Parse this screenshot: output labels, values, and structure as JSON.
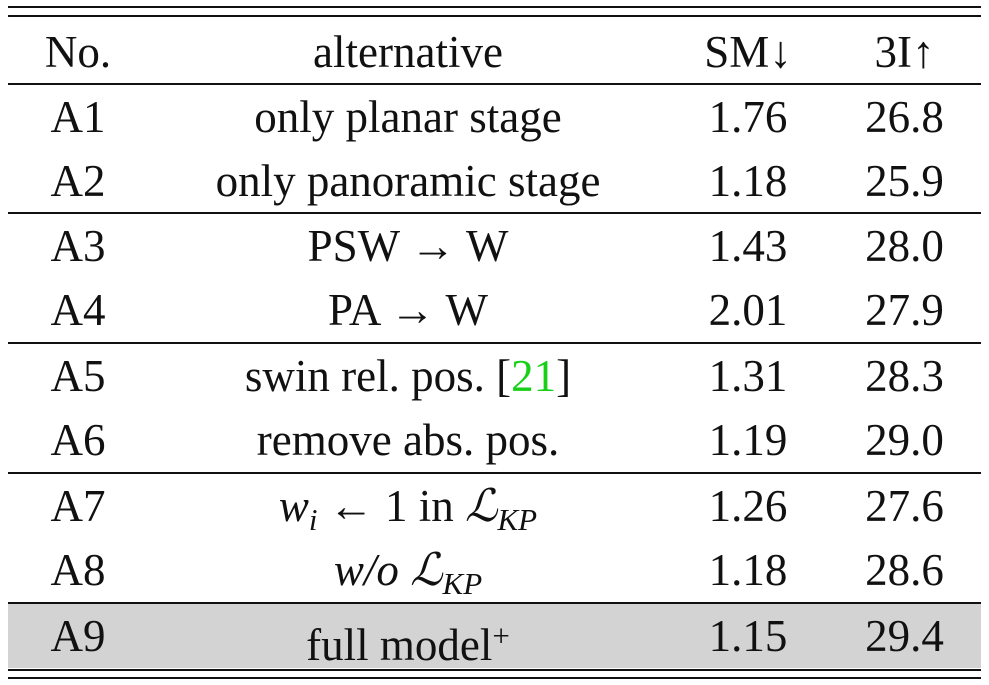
{
  "table": {
    "headers": {
      "no": "No.",
      "alternative": "alternative",
      "sm": "SM↓",
      "three_i": "3I↑"
    },
    "rows": [
      {
        "no": "A1",
        "alt": "only planar stage",
        "sm": "1.76",
        "three_i": "26.8"
      },
      {
        "no": "A2",
        "alt": "only panoramic stage",
        "sm": "1.18",
        "three_i": "25.9"
      },
      {
        "no": "A3",
        "alt": "PSW → W",
        "sm": "1.43",
        "three_i": "28.0"
      },
      {
        "no": "A4",
        "alt": "PA → W",
        "sm": "2.01",
        "three_i": "27.9"
      },
      {
        "no": "A5",
        "alt_prefix": "swin rel. pos. [",
        "alt_cite": "21",
        "alt_suffix": "]",
        "sm": "1.31",
        "three_i": "28.3"
      },
      {
        "no": "A6",
        "alt": "remove abs. pos.",
        "sm": "1.19",
        "three_i": "29.0"
      },
      {
        "no": "A7",
        "alt_w": "w",
        "alt_i": "i",
        "alt_mid": " ← 1 in ",
        "alt_L": "ℒ",
        "alt_KP": "KP",
        "sm": "1.26",
        "three_i": "27.6"
      },
      {
        "no": "A8",
        "alt_wo": "w/o",
        "alt_L": "ℒ",
        "alt_KP": "KP",
        "sm": "1.18",
        "three_i": "28.6"
      },
      {
        "no": "A9",
        "alt": "full model",
        "alt_sup": "+",
        "sm": "1.15",
        "three_i": "29.4"
      }
    ],
    "highlight_row_color": "#d3d3d3",
    "citation_color": "#18d018"
  }
}
